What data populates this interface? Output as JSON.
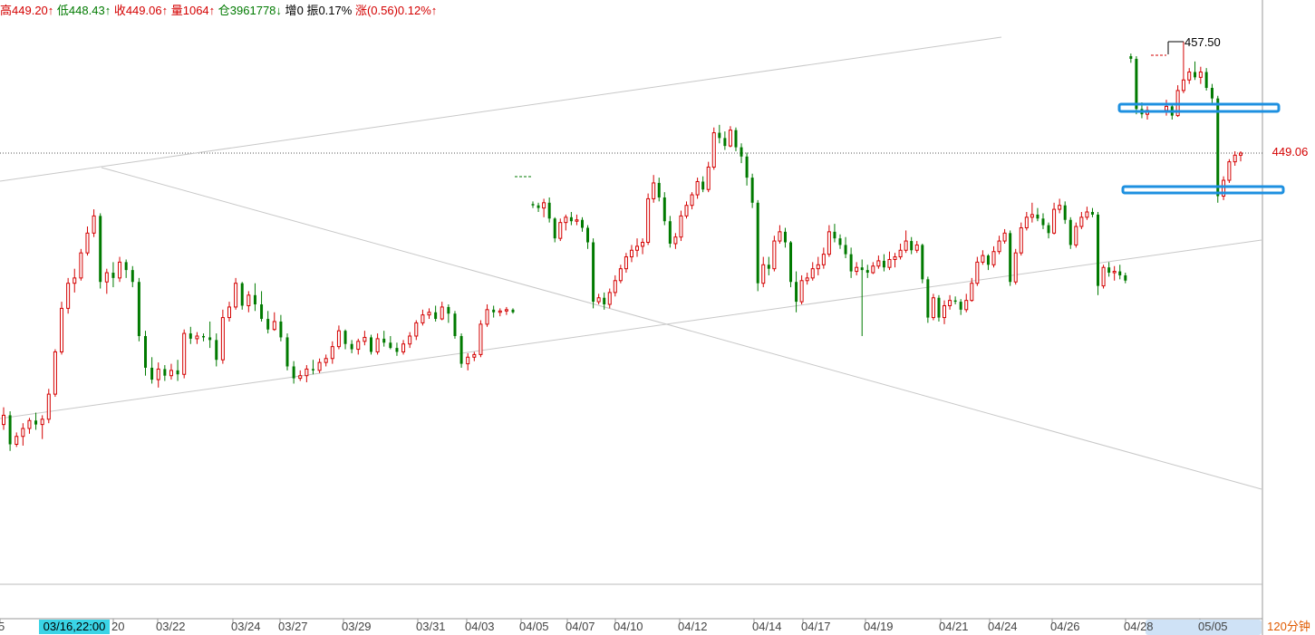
{
  "header": {
    "high_label": "高",
    "high": "449.20",
    "low_label": "低",
    "low": "448.43",
    "close_label": "收",
    "close": "449.06",
    "volume_label": "量",
    "volume": "1064",
    "oi_label": "仓",
    "oi": "3961778",
    "inc_label": "增",
    "inc": "0",
    "amp_label": "振",
    "amp": "0.17%",
    "chg_label": "涨",
    "chg": "(0.56)",
    "chg_pct": "0.12%",
    "up_arrow": "↑",
    "down_arrow": "↓"
  },
  "colors": {
    "up": "#d40000",
    "down": "#007a00",
    "highlight_box": "#1e90e0",
    "cursor_bg": "#3ad4e6"
  },
  "timeframe": "120分钟",
  "cursor_time": "03/16,22:00",
  "current_price": "449.06",
  "chart_data": {
    "type": "candlestick",
    "period": "120分钟",
    "high_annotation": "457.50",
    "last_price": 449.06,
    "x_tick_labels": [
      "5",
      "03/16,22:00",
      "20",
      "03/22",
      "03/24",
      "03/27",
      "03/29",
      "03/31",
      "04/03",
      "04/05",
      "04/07",
      "04/10",
      "04/12",
      "04/14",
      "04/17",
      "04/19",
      "04/21",
      "04/24",
      "04/26",
      "04/28",
      "05/05"
    ],
    "price_range_approx": [
      417,
      458
    ],
    "candles": [
      [
        428.5,
        429.8,
        428.1,
        429.2
      ],
      [
        429.2,
        429.5,
        426.5,
        427.0
      ],
      [
        427.0,
        427.9,
        426.8,
        427.6
      ],
      [
        427.6,
        428.6,
        426.9,
        428.2
      ],
      [
        428.2,
        429.0,
        427.8,
        428.8
      ],
      [
        428.8,
        429.4,
        428.1,
        428.5
      ],
      [
        428.5,
        429.2,
        427.4,
        428.9
      ],
      [
        428.9,
        431.2,
        428.6,
        430.8
      ],
      [
        430.8,
        434.2,
        430.6,
        434.0
      ],
      [
        434.0,
        437.8,
        433.8,
        437.3
      ],
      [
        437.3,
        439.6,
        436.9,
        439.2
      ],
      [
        439.2,
        440.3,
        438.5,
        439.6
      ],
      [
        439.6,
        441.8,
        439.4,
        441.5
      ],
      [
        441.5,
        443.5,
        441.3,
        443.0
      ],
      [
        443.0,
        444.8,
        442.7,
        444.3
      ],
      [
        444.3,
        444.5,
        438.8,
        439.3
      ],
      [
        439.3,
        440.3,
        438.4,
        440.0
      ],
      [
        440.0,
        440.8,
        438.9,
        439.6
      ],
      [
        439.6,
        441.2,
        439.3,
        440.8
      ],
      [
        440.8,
        441.0,
        439.6,
        440.2
      ],
      [
        440.2,
        440.5,
        438.9,
        439.3
      ],
      [
        439.3,
        439.6,
        434.8,
        435.2
      ],
      [
        435.2,
        435.6,
        432.2,
        432.8
      ],
      [
        432.8,
        433.6,
        431.6,
        431.9
      ],
      [
        431.9,
        433.2,
        431.3,
        432.7
      ],
      [
        432.7,
        433.0,
        431.8,
        432.2
      ],
      [
        432.2,
        433.1,
        431.9,
        432.6
      ],
      [
        432.6,
        433.4,
        431.8,
        432.3
      ],
      [
        432.3,
        435.7,
        432.0,
        435.4
      ],
      [
        435.4,
        435.9,
        434.6,
        435.0
      ],
      [
        435.0,
        435.5,
        434.6,
        435.2
      ],
      [
        435.2,
        435.4,
        434.8,
        435.1
      ],
      [
        435.1,
        436.3,
        434.3,
        434.9
      ],
      [
        434.9,
        435.4,
        432.9,
        433.4
      ],
      [
        433.4,
        437.2,
        433.1,
        436.6
      ],
      [
        436.6,
        437.8,
        436.3,
        437.4
      ],
      [
        437.4,
        439.6,
        437.2,
        439.2
      ],
      [
        439.2,
        439.3,
        437.2,
        437.5
      ],
      [
        437.5,
        438.6,
        437.0,
        438.3
      ],
      [
        438.3,
        439.2,
        437.1,
        437.6
      ],
      [
        437.6,
        438.6,
        436.3,
        436.5
      ],
      [
        436.5,
        437.1,
        435.4,
        435.7
      ],
      [
        435.7,
        437.0,
        435.6,
        436.3
      ],
      [
        436.3,
        436.8,
        434.8,
        435.1
      ],
      [
        435.1,
        435.4,
        432.6,
        432.9
      ],
      [
        432.9,
        433.3,
        431.6,
        432.0
      ],
      [
        432.0,
        432.6,
        431.8,
        432.2
      ],
      [
        432.2,
        433.0,
        431.7,
        432.7
      ],
      [
        432.7,
        433.4,
        432.3,
        432.6
      ],
      [
        432.6,
        433.5,
        432.4,
        433.2
      ],
      [
        433.2,
        433.8,
        432.9,
        433.5
      ],
      [
        433.5,
        434.8,
        433.1,
        434.4
      ],
      [
        434.4,
        436.0,
        434.2,
        435.6
      ],
      [
        435.6,
        435.7,
        434.2,
        434.6
      ],
      [
        434.6,
        434.9,
        433.9,
        434.2
      ],
      [
        434.2,
        435.0,
        433.8,
        434.8
      ],
      [
        434.8,
        435.6,
        434.5,
        435.1
      ],
      [
        435.1,
        435.3,
        433.8,
        434.0
      ],
      [
        434.0,
        435.4,
        433.8,
        435.0
      ],
      [
        435.0,
        435.6,
        434.4,
        434.7
      ],
      [
        434.7,
        435.2,
        434.2,
        434.3
      ],
      [
        434.3,
        434.7,
        433.7,
        434.0
      ],
      [
        434.0,
        434.9,
        433.8,
        434.6
      ],
      [
        434.6,
        435.5,
        434.3,
        435.2
      ],
      [
        435.2,
        436.4,
        434.9,
        436.2
      ],
      [
        436.2,
        437.2,
        436.0,
        436.8
      ],
      [
        436.8,
        437.3,
        436.5,
        437.0
      ],
      [
        437.0,
        437.5,
        436.3,
        436.5
      ],
      [
        436.5,
        437.8,
        436.4,
        437.4
      ],
      [
        437.4,
        437.6,
        436.2,
        436.9
      ],
      [
        436.9,
        437.1,
        435.0,
        435.2
      ],
      [
        435.2,
        435.4,
        432.8,
        433.1
      ],
      [
        433.1,
        433.9,
        432.6,
        433.6
      ],
      [
        433.6,
        434.0,
        433.3,
        433.8
      ],
      [
        433.8,
        436.4,
        433.6,
        436.1
      ],
      [
        436.1,
        437.6,
        435.9,
        437.2
      ],
      [
        437.2,
        437.5,
        436.6,
        437.0
      ],
      [
        437.0,
        437.3,
        436.7,
        437.1
      ],
      [
        437.1,
        437.4,
        436.8,
        437.2
      ],
      [
        437.2,
        437.3,
        436.9,
        437.0
      ],
      [
        445.2,
        445.4,
        444.9,
        445.1
      ],
      [
        445.1,
        445.3,
        444.6,
        444.9
      ],
      [
        444.9,
        445.6,
        444.2,
        445.3
      ],
      [
        445.3,
        445.7,
        443.8,
        444.1
      ],
      [
        444.1,
        444.2,
        442.3,
        442.6
      ],
      [
        442.6,
        444.1,
        442.4,
        443.8
      ],
      [
        443.8,
        444.4,
        443.2,
        444.2
      ],
      [
        444.2,
        444.6,
        443.6,
        443.9
      ],
      [
        443.9,
        444.4,
        443.6,
        444.0
      ],
      [
        444.0,
        444.2,
        443.1,
        443.4
      ],
      [
        443.4,
        443.6,
        441.8,
        442.3
      ],
      [
        442.3,
        442.6,
        437.3,
        437.8
      ],
      [
        437.8,
        438.4,
        437.6,
        438.1
      ],
      [
        438.1,
        438.5,
        437.2,
        437.6
      ],
      [
        437.6,
        438.8,
        437.3,
        438.5
      ],
      [
        438.5,
        439.8,
        438.2,
        439.4
      ],
      [
        439.4,
        440.6,
        439.2,
        440.3
      ],
      [
        440.3,
        441.5,
        440.0,
        441.2
      ],
      [
        441.2,
        442.1,
        440.8,
        441.7
      ],
      [
        441.7,
        442.6,
        441.2,
        442.0
      ],
      [
        442.0,
        442.6,
        441.4,
        442.3
      ],
      [
        442.3,
        446.0,
        442.1,
        445.6
      ],
      [
        445.6,
        447.4,
        445.3,
        446.8
      ],
      [
        446.8,
        447.2,
        445.4,
        445.7
      ],
      [
        445.7,
        446.1,
        443.6,
        443.9
      ],
      [
        443.9,
        444.3,
        441.9,
        442.2
      ],
      [
        442.2,
        443.0,
        441.8,
        442.7
      ],
      [
        442.7,
        444.7,
        442.4,
        444.3
      ],
      [
        444.3,
        445.4,
        444.1,
        445.1
      ],
      [
        445.1,
        446.1,
        444.8,
        445.9
      ],
      [
        445.9,
        447.2,
        445.6,
        446.9
      ],
      [
        446.9,
        447.3,
        446.1,
        446.3
      ],
      [
        446.3,
        448.4,
        446.1,
        448.0
      ],
      [
        448.0,
        451.0,
        447.8,
        450.6
      ],
      [
        450.6,
        451.2,
        449.8,
        450.2
      ],
      [
        450.2,
        450.7,
        449.3,
        449.6
      ],
      [
        449.6,
        451.1,
        449.5,
        450.8
      ],
      [
        450.8,
        451.0,
        449.2,
        449.5
      ],
      [
        449.5,
        449.8,
        448.3,
        448.8
      ],
      [
        448.8,
        449.1,
        446.6,
        447.2
      ],
      [
        447.2,
        447.5,
        444.9,
        445.3
      ],
      [
        445.3,
        445.5,
        438.6,
        439.2
      ],
      [
        439.2,
        441.2,
        438.9,
        440.6
      ],
      [
        440.6,
        441.2,
        439.8,
        440.3
      ],
      [
        440.3,
        442.8,
        440.1,
        442.4
      ],
      [
        442.4,
        443.6,
        442.2,
        443.1
      ],
      [
        443.1,
        443.4,
        441.9,
        442.3
      ],
      [
        442.3,
        442.4,
        438.9,
        439.3
      ],
      [
        439.3,
        440.1,
        437.0,
        437.8
      ],
      [
        437.8,
        439.8,
        437.6,
        439.4
      ],
      [
        439.4,
        440.0,
        439.1,
        439.6
      ],
      [
        439.6,
        440.8,
        439.4,
        440.3
      ],
      [
        440.3,
        441.2,
        439.8,
        440.6
      ],
      [
        440.6,
        441.9,
        440.3,
        441.4
      ],
      [
        441.4,
        443.6,
        441.2,
        443.1
      ],
      [
        443.1,
        443.7,
        442.3,
        442.6
      ],
      [
        442.6,
        442.9,
        441.8,
        442.1
      ],
      [
        442.1,
        442.7,
        441.1,
        441.4
      ],
      [
        441.4,
        441.9,
        439.6,
        440.1
      ],
      [
        440.1,
        440.8,
        439.8,
        440.4
      ],
      [
        440.4,
        441.0,
        435.2,
        440.2
      ],
      [
        440.2,
        440.6,
        439.6,
        440.0
      ],
      [
        440.0,
        440.8,
        439.9,
        440.5
      ],
      [
        440.5,
        441.3,
        440.3,
        440.9
      ],
      [
        440.9,
        441.4,
        440.1,
        440.4
      ],
      [
        440.4,
        441.6,
        440.2,
        441.0
      ],
      [
        441.0,
        441.5,
        440.4,
        441.2
      ],
      [
        441.2,
        442.2,
        441.0,
        441.7
      ],
      [
        441.7,
        443.2,
        441.5,
        442.4
      ],
      [
        442.4,
        442.7,
        441.4,
        441.7
      ],
      [
        441.7,
        442.4,
        441.5,
        442.1
      ],
      [
        442.1,
        442.2,
        439.2,
        439.5
      ],
      [
        439.5,
        439.7,
        436.2,
        436.6
      ],
      [
        436.6,
        438.4,
        436.4,
        438.1
      ],
      [
        438.1,
        438.3,
        436.3,
        436.6
      ],
      [
        436.6,
        437.9,
        436.1,
        437.5
      ],
      [
        437.5,
        438.3,
        437.2,
        437.9
      ],
      [
        437.9,
        438.2,
        437.6,
        437.8
      ],
      [
        437.8,
        438.0,
        436.8,
        437.2
      ],
      [
        437.2,
        438.4,
        437.0,
        437.9
      ],
      [
        437.9,
        439.6,
        437.8,
        439.2
      ],
      [
        439.2,
        441.2,
        439.0,
        440.8
      ],
      [
        440.8,
        441.7,
        440.6,
        441.3
      ],
      [
        441.3,
        441.4,
        440.2,
        440.6
      ],
      [
        440.6,
        442.0,
        440.4,
        441.6
      ],
      [
        441.6,
        442.8,
        441.4,
        442.4
      ],
      [
        442.4,
        443.3,
        442.2,
        443.0
      ],
      [
        443.0,
        443.2,
        439.0,
        439.3
      ],
      [
        439.3,
        441.8,
        439.1,
        441.5
      ],
      [
        441.5,
        443.8,
        441.3,
        443.4
      ],
      [
        443.4,
        444.6,
        443.2,
        444.2
      ],
      [
        444.2,
        445.3,
        443.8,
        444.4
      ],
      [
        444.4,
        444.9,
        443.9,
        444.1
      ],
      [
        444.1,
        444.5,
        443.3,
        443.6
      ],
      [
        443.6,
        443.8,
        442.6,
        443.0
      ],
      [
        443.0,
        445.3,
        442.9,
        444.8
      ],
      [
        444.8,
        445.6,
        444.5,
        445.1
      ],
      [
        445.1,
        445.4,
        443.7,
        444.0
      ],
      [
        444.0,
        444.2,
        441.8,
        442.1
      ],
      [
        442.1,
        443.8,
        441.9,
        443.5
      ],
      [
        443.5,
        444.6,
        443.3,
        444.2
      ],
      [
        444.2,
        445.0,
        444.0,
        444.6
      ],
      [
        444.6,
        444.9,
        444.2,
        444.4
      ],
      [
        444.4,
        444.6,
        438.3,
        439.0
      ],
      [
        439.0,
        440.6,
        438.8,
        440.4
      ],
      [
        440.4,
        440.8,
        439.7,
        440.0
      ],
      [
        440.0,
        440.5,
        439.4,
        440.1
      ],
      [
        440.1,
        440.6,
        439.5,
        439.8
      ],
      [
        439.8,
        440.0,
        439.2,
        439.4
      ],
      [
        456.4,
        456.6,
        455.9,
        456.2
      ],
      [
        456.2,
        456.4,
        452.0,
        452.4
      ],
      [
        452.4,
        452.9,
        451.7,
        452.0
      ],
      [
        452.0,
        452.6,
        451.6,
        452.3
      ],
      [
        452.3,
        453.1,
        451.9,
        452.6
      ],
      [
        452.6,
        452.8,
        451.6,
        451.9
      ],
      [
        451.9,
        454.2,
        451.8,
        453.8
      ],
      [
        453.8,
        457.5,
        453.6,
        454.6
      ],
      [
        454.6,
        455.5,
        454.3,
        455.2
      ],
      [
        455.2,
        456.0,
        454.6,
        454.8
      ],
      [
        454.8,
        455.6,
        454.3,
        455.2
      ],
      [
        455.2,
        455.5,
        453.8,
        454.0
      ],
      [
        454.0,
        454.3,
        452.7,
        453.2
      ],
      [
        453.2,
        453.4,
        445.3,
        445.8
      ],
      [
        445.8,
        447.3,
        445.5,
        447.0
      ],
      [
        447.0,
        448.6,
        446.8,
        448.4
      ],
      [
        448.4,
        449.2,
        448.1,
        448.9
      ],
      [
        448.9,
        449.2,
        448.43,
        449.06
      ]
    ]
  }
}
